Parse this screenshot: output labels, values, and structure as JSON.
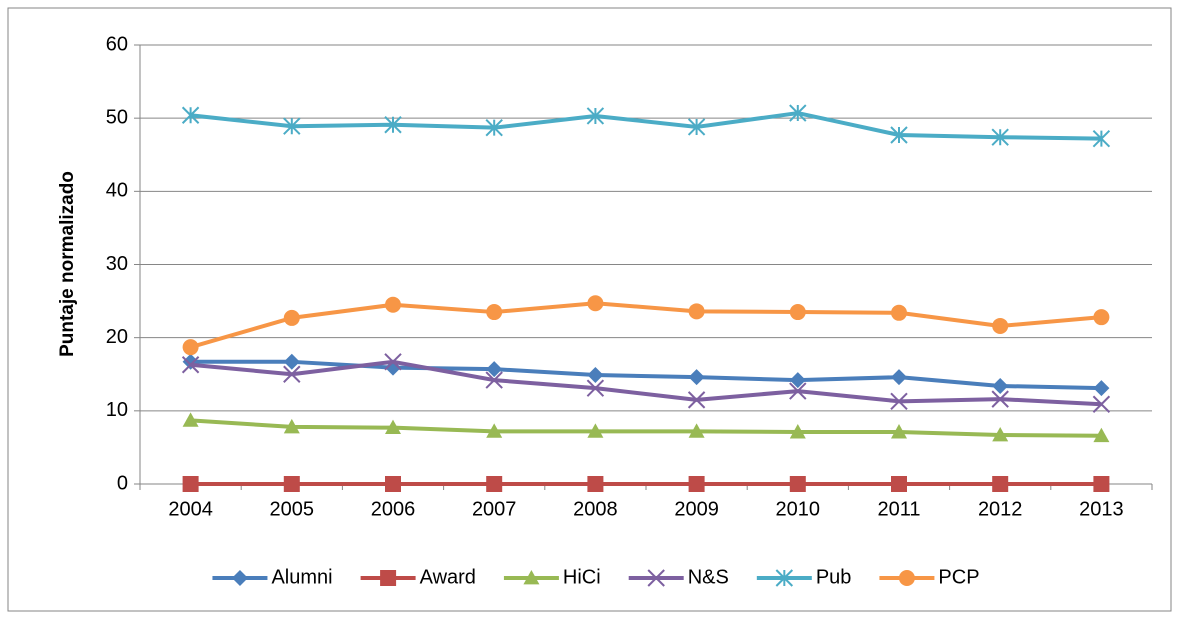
{
  "chart_data": {
    "type": "line",
    "y_label": "Puntaje normalizado",
    "categories": [
      "2004",
      "2005",
      "2006",
      "2007",
      "2008",
      "2009",
      "2010",
      "2011",
      "2012",
      "2013"
    ],
    "series": [
      {
        "name": "Alumni",
        "color": "#4a7ebb",
        "marker": "diamond",
        "values": [
          16.7,
          16.7,
          15.9,
          15.7,
          14.9,
          14.6,
          14.2,
          14.6,
          13.4,
          13.1
        ]
      },
      {
        "name": "Award",
        "color": "#be4b48",
        "marker": "square",
        "values": [
          0,
          0,
          0,
          0,
          0,
          0,
          0,
          0,
          0,
          0
        ]
      },
      {
        "name": "HiCi",
        "color": "#98b954",
        "marker": "triangle",
        "values": [
          8.7,
          7.8,
          7.7,
          7.2,
          7.2,
          7.2,
          7.1,
          7.1,
          6.7,
          6.6
        ]
      },
      {
        "name": "N&S",
        "color": "#7d60a0",
        "marker": "x",
        "values": [
          16.3,
          15.0,
          16.7,
          14.2,
          13.1,
          11.5,
          12.7,
          11.3,
          11.6,
          10.9
        ]
      },
      {
        "name": "Pub",
        "color": "#4bacc6",
        "marker": "asterisk",
        "values": [
          50.4,
          48.9,
          49.1,
          48.7,
          50.3,
          48.8,
          50.7,
          47.7,
          47.4,
          47.2
        ]
      },
      {
        "name": "PCP",
        "color": "#f79646",
        "marker": "circle",
        "values": [
          18.7,
          22.7,
          24.5,
          23.5,
          24.7,
          23.6,
          23.5,
          23.4,
          21.6,
          22.8
        ]
      }
    ],
    "ylim": [
      0,
      60
    ],
    "yticks": [
      0,
      10,
      20,
      30,
      40,
      50,
      60
    ],
    "grid": true,
    "legend": "bottom"
  }
}
